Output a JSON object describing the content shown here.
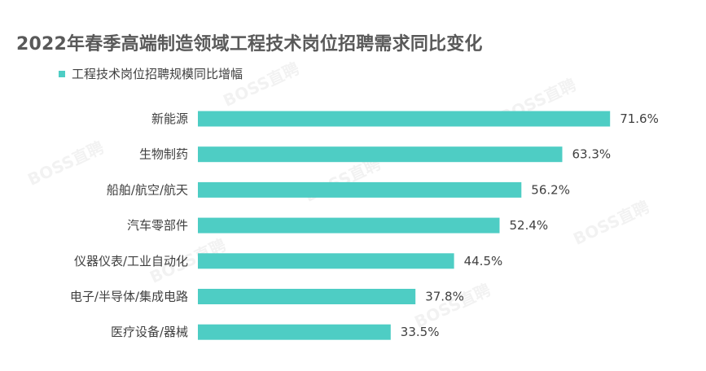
{
  "chart_data": {
    "type": "bar",
    "orientation": "horizontal",
    "title": "2022年春季高端制造领域工程技术岗位招聘需求同比变化",
    "legend": [
      "工程技术岗位招聘规模同比增幅"
    ],
    "legend_position": "top-left",
    "categories": [
      "新能源",
      "生物制药",
      "船舶/航空/航天",
      "汽车零部件",
      "仪器仪表/工业自动化",
      "电子/半导体/集成电路",
      "医疗设备/器械"
    ],
    "series": [
      {
        "name": "工程技术岗位招聘规模同比增幅",
        "values": [
          71.6,
          63.3,
          56.2,
          52.4,
          44.5,
          37.8,
          33.5
        ],
        "labels": [
          "71.6%",
          "63.3%",
          "56.2%",
          "52.4%",
          "44.5%",
          "37.8%",
          "33.5%"
        ]
      }
    ],
    "xlim": [
      0,
      100
    ],
    "grid": false,
    "bar_color": "#4ECDC4"
  },
  "watermark": "BOSS直聘"
}
